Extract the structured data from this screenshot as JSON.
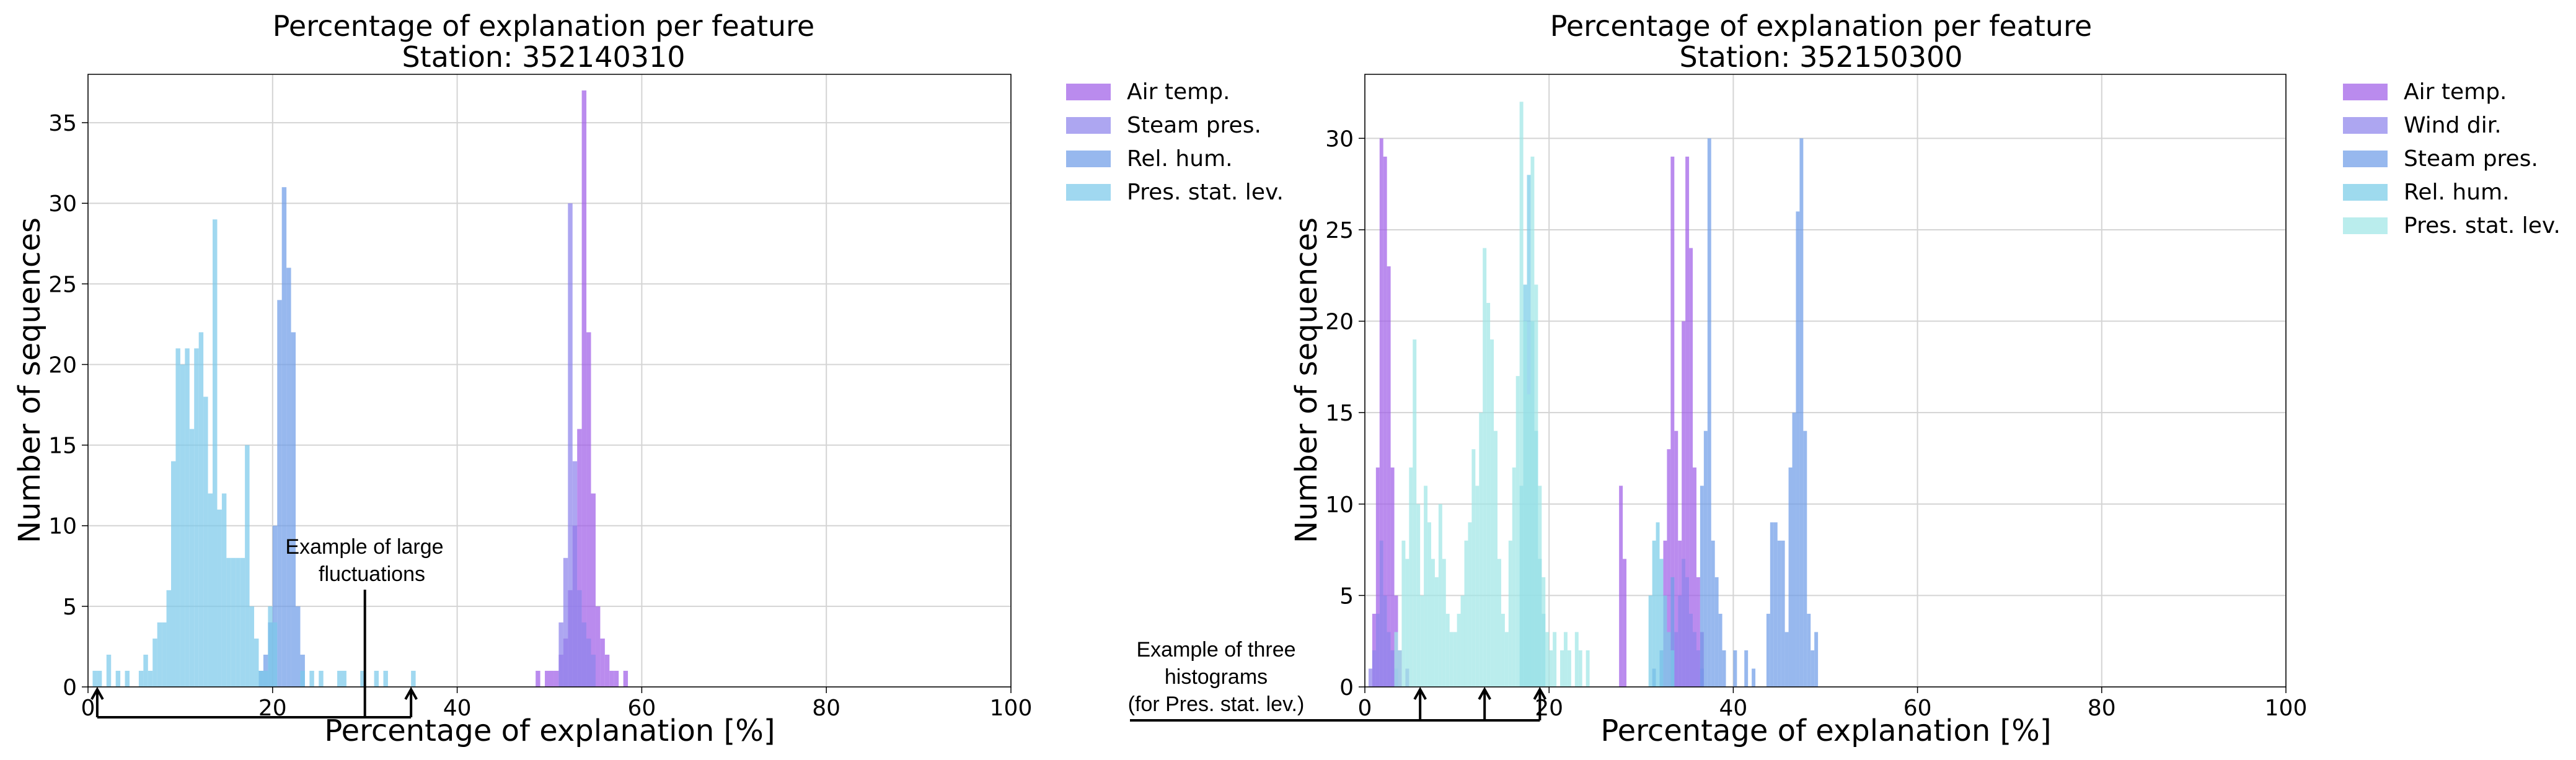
{
  "chart_data": [
    {
      "type": "bar",
      "title": "Percentage of explanation per feature",
      "subtitle": "Station: 352140310",
      "xlabel": "Percentage of explanation [%]",
      "ylabel": "Number of sequences",
      "xlim": [
        0,
        100
      ],
      "ylim": [
        0,
        38
      ],
      "xticks": [
        "0",
        "20",
        "40",
        "60",
        "80",
        "100"
      ],
      "yticks": [
        "0",
        "5",
        "10",
        "15",
        "20",
        "25",
        "30",
        "35"
      ],
      "grid": true,
      "legend_position": "outside-right",
      "bin_width": 0.5,
      "series": [
        {
          "name": "Air temp.",
          "color": "#a05ee8",
          "counts": [
            [
              48.5,
              1
            ],
            [
              49.5,
              1
            ],
            [
              50,
              1
            ],
            [
              50.5,
              1
            ],
            [
              51,
              2
            ],
            [
              51.5,
              3
            ],
            [
              52,
              6
            ],
            [
              52.5,
              10
            ],
            [
              53,
              16
            ],
            [
              53.5,
              37
            ],
            [
              54,
              22
            ],
            [
              54.5,
              12
            ],
            [
              55,
              5
            ],
            [
              55.5,
              3
            ],
            [
              56,
              2
            ],
            [
              56.5,
              1
            ],
            [
              57,
              1
            ],
            [
              58,
              1
            ]
          ]
        },
        {
          "name": "Steam pres.",
          "color": "#8e84ec",
          "counts": [
            [
              51,
              4
            ],
            [
              51.5,
              8
            ],
            [
              52,
              30
            ],
            [
              52.5,
              14
            ],
            [
              53,
              6
            ],
            [
              53.5,
              4
            ],
            [
              54,
              3
            ],
            [
              54.5,
              2
            ]
          ]
        },
        {
          "name": "Rel. hum.",
          "color": "#6f9de8",
          "counts": [
            [
              18.5,
              1
            ],
            [
              19,
              2
            ],
            [
              19.5,
              4
            ],
            [
              20,
              10
            ],
            [
              20.5,
              24
            ],
            [
              21,
              31
            ],
            [
              21.5,
              26
            ],
            [
              22,
              22
            ],
            [
              22.5,
              5
            ],
            [
              23,
              2
            ]
          ]
        },
        {
          "name": "Pres. stat. lev.",
          "color": "#7cc9ea",
          "counts": [
            [
              0.5,
              1
            ],
            [
              1,
              1
            ],
            [
              2,
              2
            ],
            [
              3,
              1
            ],
            [
              4,
              1
            ],
            [
              5.5,
              1
            ],
            [
              6,
              2
            ],
            [
              6.5,
              1
            ],
            [
              7,
              3
            ],
            [
              7.5,
              4
            ],
            [
              8,
              4
            ],
            [
              8.5,
              6
            ],
            [
              9,
              14
            ],
            [
              9.5,
              21
            ],
            [
              10,
              20
            ],
            [
              10.5,
              21
            ],
            [
              11,
              16
            ],
            [
              11.5,
              21
            ],
            [
              12,
              22
            ],
            [
              12.5,
              18
            ],
            [
              13,
              12
            ],
            [
              13.5,
              29
            ],
            [
              14,
              11
            ],
            [
              14.5,
              12
            ],
            [
              15,
              8
            ],
            [
              15.5,
              8
            ],
            [
              16,
              8
            ],
            [
              16.5,
              8
            ],
            [
              17,
              15
            ],
            [
              17.5,
              5
            ],
            [
              18,
              3
            ],
            [
              18.5,
              1
            ],
            [
              19,
              1
            ],
            [
              19.5,
              5
            ],
            [
              20,
              4
            ],
            [
              23,
              1
            ],
            [
              24,
              1
            ],
            [
              25,
              1
            ],
            [
              27,
              1
            ],
            [
              27.5,
              1
            ],
            [
              29.5,
              1
            ],
            [
              31,
              1
            ],
            [
              32,
              1
            ],
            [
              35,
              1
            ]
          ]
        }
      ],
      "annotation": {
        "text_line1": "Example of large",
        "text_line2": "fluctuations",
        "bracket_from": 1,
        "bracket_to": 35,
        "stem_x": 30
      }
    },
    {
      "type": "bar",
      "title": "Percentage of explanation per feature",
      "subtitle": "Station: 352150300",
      "xlabel": "Percentage of explanation [%]",
      "ylabel": "Number of sequences",
      "xlim": [
        0,
        100
      ],
      "ylim": [
        0,
        33.5
      ],
      "xticks": [
        "0",
        "20",
        "40",
        "60",
        "80",
        "100"
      ],
      "yticks": [
        "0",
        "5",
        "10",
        "15",
        "20",
        "25",
        "30"
      ],
      "grid": true,
      "legend_position": "outside-right",
      "bin_width": 0.4,
      "series": [
        {
          "name": "Air temp.",
          "color": "#a05ee8",
          "counts": [
            [
              0.8,
              4
            ],
            [
              1.2,
              12
            ],
            [
              1.6,
              30
            ],
            [
              2.0,
              29
            ],
            [
              2.4,
              23
            ],
            [
              2.8,
              12
            ],
            [
              3.2,
              5
            ],
            [
              3.6,
              2
            ],
            [
              27.6,
              11
            ],
            [
              28.0,
              7
            ],
            [
              32.4,
              8
            ],
            [
              32.8,
              13
            ],
            [
              33.2,
              29
            ],
            [
              33.6,
              14
            ],
            [
              34.0,
              8
            ],
            [
              34.4,
              20
            ],
            [
              34.8,
              29
            ],
            [
              35.2,
              24
            ],
            [
              35.6,
              12
            ],
            [
              36.0,
              6
            ],
            [
              36.4,
              3
            ]
          ]
        },
        {
          "name": "Wind dir.",
          "color": "#8e84ec",
          "counts": [
            [
              0.4,
              1
            ],
            [
              0.8,
              2
            ],
            [
              1.2,
              4
            ],
            [
              1.6,
              8
            ],
            [
              2.0,
              5
            ],
            [
              2.4,
              3
            ],
            [
              2.8,
              2
            ],
            [
              3.2,
              1
            ],
            [
              4.4,
              1
            ],
            [
              33.6,
              3
            ],
            [
              34.0,
              5
            ],
            [
              34.4,
              7
            ],
            [
              34.8,
              6
            ],
            [
              35.2,
              4
            ],
            [
              35.6,
              3
            ],
            [
              36.0,
              2
            ],
            [
              36.4,
              1
            ]
          ]
        },
        {
          "name": "Steam pres.",
          "color": "#6f9de8",
          "counts": [
            [
              31.2,
              1
            ],
            [
              32.0,
              2
            ],
            [
              33.2,
              6
            ],
            [
              36.4,
              11
            ],
            [
              36.8,
              14
            ],
            [
              37.2,
              30
            ],
            [
              37.6,
              8
            ],
            [
              38.0,
              6
            ],
            [
              38.4,
              4
            ],
            [
              38.8,
              2
            ],
            [
              40.0,
              2
            ],
            [
              41.2,
              2
            ],
            [
              42.0,
              1
            ],
            [
              43.6,
              4
            ],
            [
              44.0,
              9
            ],
            [
              44.4,
              9
            ],
            [
              44.8,
              8
            ],
            [
              45.2,
              8
            ],
            [
              45.6,
              3
            ],
            [
              46.0,
              12
            ],
            [
              46.4,
              15
            ],
            [
              46.8,
              26
            ],
            [
              47.2,
              30
            ],
            [
              47.6,
              14
            ],
            [
              48.0,
              4
            ],
            [
              48.4,
              2
            ],
            [
              48.8,
              3
            ]
          ]
        },
        {
          "name": "Rel. hum.",
          "color": "#79cce8",
          "counts": [
            [
              16.8,
              11
            ],
            [
              17.2,
              22
            ],
            [
              17.6,
              28
            ],
            [
              18.0,
              20
            ],
            [
              18.4,
              14
            ],
            [
              18.8,
              7
            ],
            [
              19.2,
              4
            ],
            [
              30.8,
              5
            ],
            [
              31.2,
              8
            ],
            [
              31.6,
              9
            ],
            [
              32.0,
              7
            ],
            [
              32.4,
              5
            ],
            [
              32.8,
              3
            ],
            [
              33.2,
              2
            ]
          ]
        },
        {
          "name": "Pres. stat. lev.",
          "color": "#9fe6e6",
          "counts": [
            [
              3.2,
              3
            ],
            [
              3.6,
              2
            ],
            [
              4.0,
              8
            ],
            [
              4.4,
              7
            ],
            [
              4.8,
              12
            ],
            [
              5.2,
              19
            ],
            [
              5.6,
              10
            ],
            [
              6.0,
              5
            ],
            [
              6.4,
              11
            ],
            [
              6.8,
              9
            ],
            [
              7.2,
              7
            ],
            [
              7.6,
              6
            ],
            [
              8.0,
              10
            ],
            [
              8.4,
              7
            ],
            [
              8.8,
              4
            ],
            [
              9.2,
              3
            ],
            [
              9.6,
              3
            ],
            [
              10.0,
              4
            ],
            [
              10.4,
              5
            ],
            [
              10.8,
              8
            ],
            [
              11.2,
              9
            ],
            [
              11.6,
              13
            ],
            [
              12.0,
              11
            ],
            [
              12.4,
              15
            ],
            [
              12.8,
              24
            ],
            [
              13.2,
              21
            ],
            [
              13.6,
              19
            ],
            [
              14.0,
              14
            ],
            [
              14.4,
              7
            ],
            [
              14.8,
              4
            ],
            [
              15.2,
              3
            ],
            [
              15.6,
              8
            ],
            [
              16.0,
              12
            ],
            [
              16.4,
              17
            ],
            [
              16.8,
              32
            ],
            [
              17.2,
              20
            ],
            [
              17.6,
              16
            ],
            [
              18.0,
              29
            ],
            [
              18.4,
              22
            ],
            [
              18.8,
              11
            ],
            [
              19.2,
              6
            ],
            [
              19.6,
              3
            ],
            [
              20.0,
              2
            ],
            [
              20.4,
              3
            ],
            [
              21.2,
              2
            ],
            [
              21.6,
              3
            ],
            [
              22.0,
              2
            ],
            [
              22.8,
              3
            ],
            [
              23.2,
              2
            ],
            [
              24.0,
              2
            ]
          ]
        }
      ],
      "annotation": {
        "text_line1": "Example of three",
        "text_line2": "histograms",
        "text_line3": "(for Pres. stat. lev.)",
        "arrows_at": [
          6,
          13,
          19
        ]
      }
    }
  ]
}
